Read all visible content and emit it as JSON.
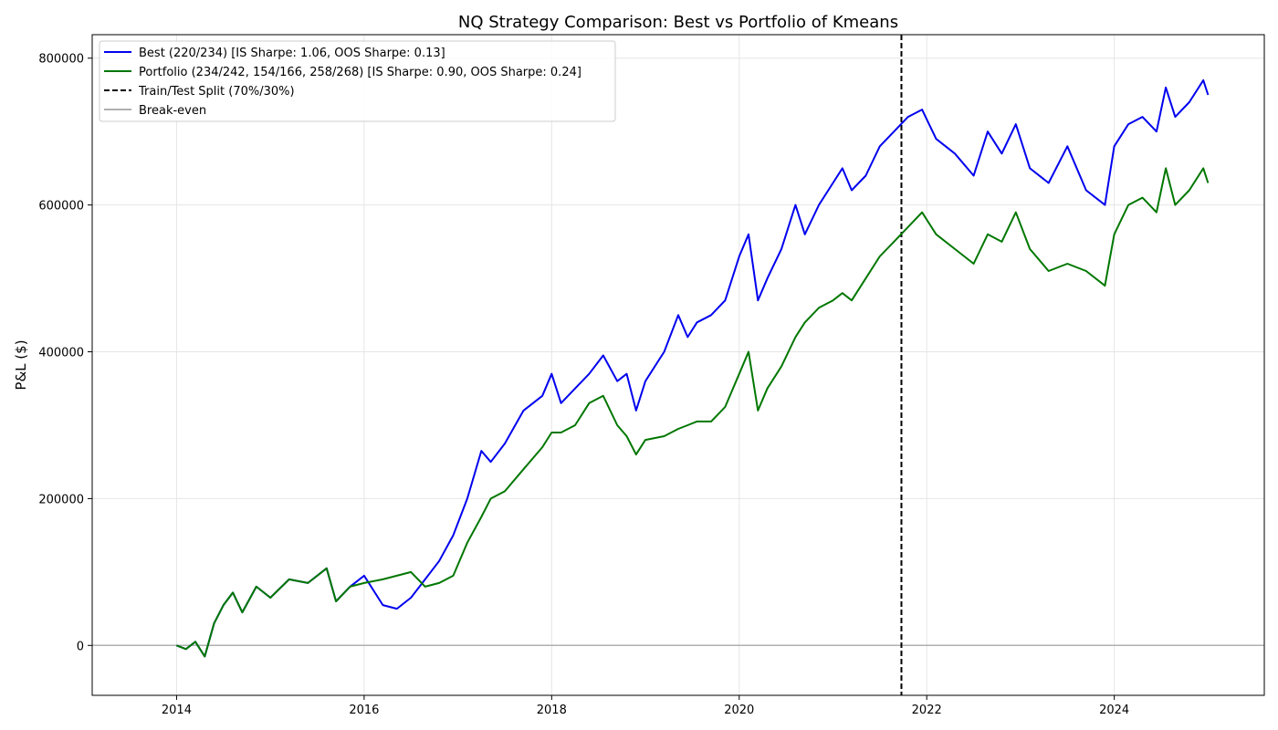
{
  "chart_data": {
    "type": "line",
    "title": "NQ Strategy Comparison: Best vs Portfolio of Kmeans",
    "xlabel": "",
    "ylabel": "P&L ($)",
    "xlim": [
      2013.1,
      2025.6
    ],
    "ylim": [
      -68000,
      832000
    ],
    "x_ticks": [
      2014,
      2016,
      2018,
      2020,
      2022,
      2024
    ],
    "x_tick_labels": [
      "2014",
      "2016",
      "2018",
      "2020",
      "2022",
      "2024"
    ],
    "y_ticks": [
      0,
      200000,
      400000,
      600000,
      800000
    ],
    "y_tick_labels": [
      "0",
      "200000",
      "400000",
      "600000",
      "800000"
    ],
    "grid": true,
    "legend_position": "top-left",
    "split": {
      "x": 2021.73,
      "label": "Train/Test Split (70%/30%)",
      "color": "#000000",
      "style": "dashed"
    },
    "breakeven": {
      "y": 0,
      "label": "Break-even",
      "color": "#b0b0b0"
    },
    "series": [
      {
        "name": "Best (220/234) [IS Sharpe: 1.06, OOS Sharpe: 0.13]",
        "color": "#0000ee",
        "x": [
          2014.0,
          2014.1,
          2014.2,
          2014.3,
          2014.4,
          2014.5,
          2014.6,
          2014.7,
          2014.85,
          2015.0,
          2015.2,
          2015.4,
          2015.6,
          2015.7,
          2015.85,
          2016.0,
          2016.2,
          2016.35,
          2016.5,
          2016.65,
          2016.8,
          2016.95,
          2017.1,
          2017.25,
          2017.35,
          2017.5,
          2017.7,
          2017.9,
          2018.0,
          2018.1,
          2018.25,
          2018.4,
          2018.55,
          2018.7,
          2018.8,
          2018.9,
          2019.0,
          2019.2,
          2019.35,
          2019.45,
          2019.55,
          2019.7,
          2019.85,
          2020.0,
          2020.1,
          2020.2,
          2020.3,
          2020.45,
          2020.6,
          2020.7,
          2020.85,
          2021.0,
          2021.1,
          2021.2,
          2021.35,
          2021.5,
          2021.65,
          2021.8,
          2021.95,
          2022.1,
          2022.3,
          2022.5,
          2022.65,
          2022.8,
          2022.95,
          2023.1,
          2023.3,
          2023.5,
          2023.7,
          2023.9,
          2024.0,
          2024.15,
          2024.3,
          2024.45,
          2024.55,
          2024.65,
          2024.8,
          2024.95,
          2025.0
        ],
        "values": [
          0,
          -5000,
          5000,
          -15000,
          30000,
          55000,
          72000,
          45000,
          80000,
          65000,
          90000,
          85000,
          105000,
          60000,
          80000,
          95000,
          55000,
          50000,
          65000,
          90000,
          115000,
          150000,
          200000,
          265000,
          250000,
          275000,
          320000,
          340000,
          370000,
          330000,
          350000,
          370000,
          395000,
          360000,
          370000,
          320000,
          360000,
          400000,
          450000,
          420000,
          440000,
          450000,
          470000,
          530000,
          560000,
          470000,
          500000,
          540000,
          600000,
          560000,
          600000,
          630000,
          650000,
          620000,
          640000,
          680000,
          700000,
          720000,
          730000,
          690000,
          670000,
          640000,
          700000,
          670000,
          710000,
          650000,
          630000,
          680000,
          620000,
          600000,
          680000,
          710000,
          720000,
          700000,
          760000,
          720000,
          740000,
          770000,
          750000
        ]
      },
      {
        "name": "Portfolio (234/242, 154/166, 258/268) [IS Sharpe: 0.90, OOS Sharpe: 0.24]",
        "color": "#007700",
        "x": [
          2014.0,
          2014.1,
          2014.2,
          2014.3,
          2014.4,
          2014.5,
          2014.6,
          2014.7,
          2014.85,
          2015.0,
          2015.2,
          2015.4,
          2015.6,
          2015.7,
          2015.85,
          2016.0,
          2016.2,
          2016.35,
          2016.5,
          2016.65,
          2016.8,
          2016.95,
          2017.1,
          2017.25,
          2017.35,
          2017.5,
          2017.7,
          2017.9,
          2018.0,
          2018.1,
          2018.25,
          2018.4,
          2018.55,
          2018.7,
          2018.8,
          2018.9,
          2019.0,
          2019.2,
          2019.35,
          2019.45,
          2019.55,
          2019.7,
          2019.85,
          2020.0,
          2020.1,
          2020.2,
          2020.3,
          2020.45,
          2020.6,
          2020.7,
          2020.85,
          2021.0,
          2021.1,
          2021.2,
          2021.35,
          2021.5,
          2021.65,
          2021.8,
          2021.95,
          2022.1,
          2022.3,
          2022.5,
          2022.65,
          2022.8,
          2022.95,
          2023.1,
          2023.3,
          2023.5,
          2023.7,
          2023.9,
          2024.0,
          2024.15,
          2024.3,
          2024.45,
          2024.55,
          2024.65,
          2024.8,
          2024.95,
          2025.0
        ],
        "values": [
          0,
          -5000,
          5000,
          -15000,
          30000,
          55000,
          72000,
          45000,
          80000,
          65000,
          90000,
          85000,
          105000,
          60000,
          80000,
          85000,
          90000,
          95000,
          100000,
          80000,
          85000,
          95000,
          140000,
          175000,
          200000,
          210000,
          240000,
          270000,
          290000,
          290000,
          300000,
          330000,
          340000,
          300000,
          285000,
          260000,
          280000,
          285000,
          295000,
          300000,
          305000,
          305000,
          325000,
          370000,
          400000,
          320000,
          350000,
          380000,
          420000,
          440000,
          460000,
          470000,
          480000,
          470000,
          500000,
          530000,
          550000,
          570000,
          590000,
          560000,
          540000,
          520000,
          560000,
          550000,
          590000,
          540000,
          510000,
          520000,
          510000,
          490000,
          560000,
          600000,
          610000,
          590000,
          650000,
          600000,
          620000,
          650000,
          630000
        ]
      }
    ]
  }
}
